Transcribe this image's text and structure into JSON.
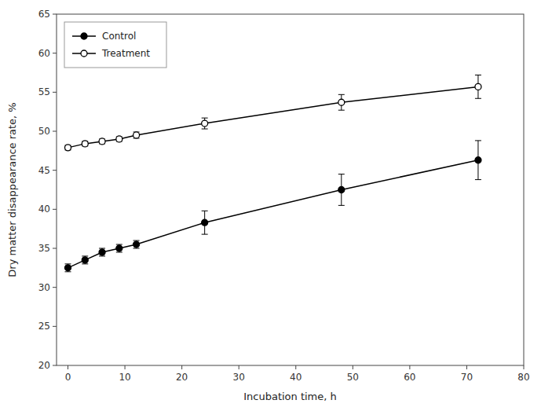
{
  "chart_data": {
    "type": "line",
    "x": [
      0,
      3,
      6,
      9,
      12,
      24,
      48,
      72
    ],
    "xlabel": "Incubation time, h",
    "ylabel": "Dry matter disappearance rate, %",
    "xlim": [
      -2,
      80
    ],
    "ylim": [
      20,
      65
    ],
    "xticks": [
      0,
      10,
      20,
      30,
      40,
      50,
      60,
      70,
      80
    ],
    "yticks": [
      20,
      25,
      30,
      35,
      40,
      45,
      50,
      55,
      60,
      65
    ],
    "grid": false,
    "legend": "upper left",
    "series": [
      {
        "name": "Control",
        "color": "black",
        "marker": "circle",
        "values": [
          32.5,
          33.5,
          34.5,
          35.0,
          35.5,
          38.3,
          42.5,
          46.3
        ],
        "errors": [
          0.5,
          0.5,
          0.5,
          0.5,
          0.5,
          1.5,
          2.0,
          2.5
        ]
      },
      {
        "name": "Treatment",
        "color": "black",
        "marker": "open-circle",
        "values": [
          47.9,
          48.4,
          48.7,
          49.0,
          49.5,
          51.0,
          53.7,
          55.7
        ],
        "errors": [
          0.3,
          0.3,
          0.3,
          0.3,
          0.4,
          0.7,
          1.0,
          1.5
        ]
      }
    ]
  }
}
